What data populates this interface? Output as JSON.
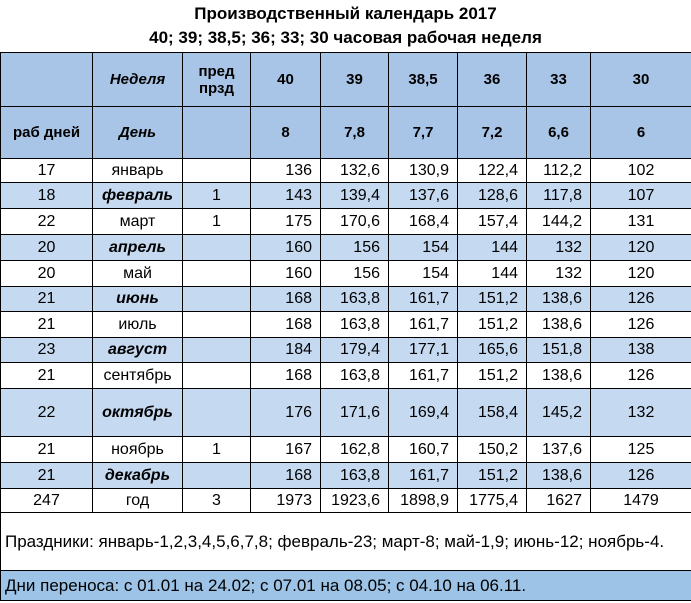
{
  "title": "Производственный календарь 2017",
  "subtitle": "40; 39; 38,5; 36; 33; 30  часовая рабочая неделя",
  "table": {
    "header": {
      "week": "Неделя",
      "pre": "пред прзд",
      "hours": [
        "40",
        "39",
        "38,5",
        "36",
        "33",
        "30"
      ],
      "workdays": "раб дней",
      "day": "День",
      "norms": [
        "8",
        "7,8",
        "7,7",
        "7,2",
        "6,6",
        "6"
      ]
    },
    "rows": [
      [
        "17",
        "январь",
        null,
        "136",
        "132,6",
        "130,9",
        "122,4",
        "112,2",
        "102"
      ],
      [
        "18",
        "февраль",
        "1",
        "143",
        "139,4",
        "137,6",
        "128,6",
        "117,8",
        "107"
      ],
      [
        "22",
        "март",
        "1",
        "175",
        "170,6",
        "168,4",
        "157,4",
        "144,2",
        "131"
      ],
      [
        "20",
        "апрель",
        null,
        "160",
        "156",
        "154",
        "144",
        "132",
        "120"
      ],
      [
        "20",
        "май",
        null,
        "160",
        "156",
        "154",
        "144",
        "132",
        "120"
      ],
      [
        "21",
        "июнь",
        null,
        "168",
        "163,8",
        "161,7",
        "151,2",
        "138,6",
        "126"
      ],
      [
        "21",
        "июль",
        null,
        "168",
        "163,8",
        "161,7",
        "151,2",
        "138,6",
        "126"
      ],
      [
        "23",
        "август",
        null,
        "184",
        "179,4",
        "177,1",
        "165,6",
        "151,8",
        "138"
      ],
      [
        "21",
        "сентябрь",
        null,
        "168",
        "163,8",
        "161,7",
        "151,2",
        "138,6",
        "126"
      ],
      [
        "22",
        "октябрь",
        null,
        "176",
        "171,6",
        "169,4",
        "158,4",
        "145,2",
        "132"
      ],
      [
        "21",
        "ноябрь",
        "1",
        "167",
        "162,8",
        "160,7",
        "150,2",
        "137,6",
        "125"
      ],
      [
        "21",
        "декабрь",
        null,
        "168",
        "163,8",
        "161,7",
        "151,2",
        "138,6",
        "126"
      ],
      [
        "247",
        "год",
        "3",
        "1973",
        "1923,6",
        "1898,9",
        "1775,4",
        "1627",
        "1479"
      ]
    ]
  },
  "notes": {
    "holidays": "Праздники: январь-1,2,3,4,5,6,7,8; февраль-23; март-8; май-1,9; июнь-12; ноябрь-4.",
    "transfers": "Дни переноса: с 01.01 на 24.02; с 07.01 на 08.05; с 04.10 на 06.11."
  }
}
